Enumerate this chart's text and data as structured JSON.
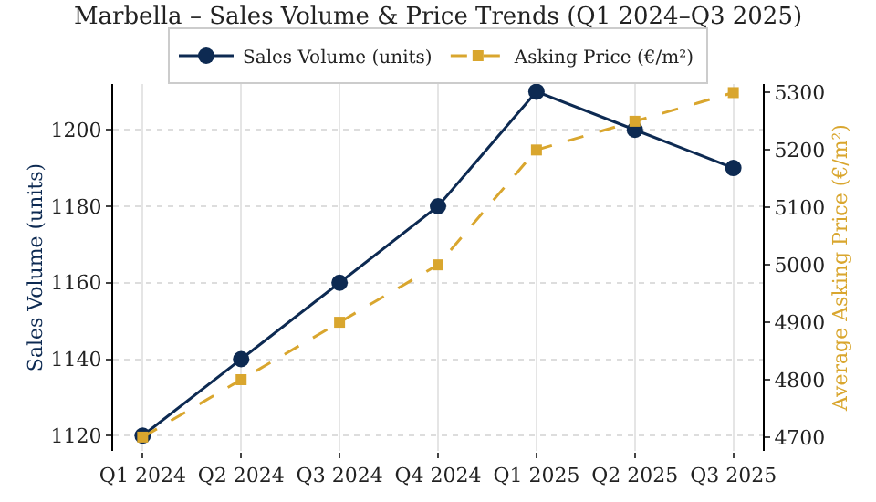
{
  "chart_data": {
    "type": "line",
    "title": "Marbella – Sales Volume & Price Trends (Q1 2024–Q3 2025)",
    "ylabel": "Sales Volume (units)",
    "y2label": "Average Asking Price (€/m²)",
    "categories": [
      "Q1 2024",
      "Q2 2024",
      "Q3 2024",
      "Q4 2024",
      "Q1 2025",
      "Q2 2025",
      "Q3 2025"
    ],
    "series": [
      {
        "name": "Sales Volume (units)",
        "color": "#0d2a52",
        "values": [
          1120,
          1140,
          1160,
          1180,
          1210,
          1200,
          1190
        ],
        "marker": "circle",
        "line_style": "solid"
      },
      {
        "name": "Asking Price (€/m²)",
        "color": "#d9a62e",
        "values": [
          4700,
          4800,
          4900,
          5000,
          5200,
          5250,
          5300
        ],
        "axis": "y2",
        "marker": "square",
        "line_style": "dashed"
      }
    ],
    "ylim": [
      1116,
      1212
    ],
    "yticks": [
      1120,
      1140,
      1160,
      1180,
      1200
    ],
    "y2lim": [
      4676,
      5315
    ],
    "y2ticks": [
      4700,
      4800,
      4900,
      5000,
      5100,
      5200,
      5300
    ],
    "grid": true,
    "legend": "top"
  }
}
